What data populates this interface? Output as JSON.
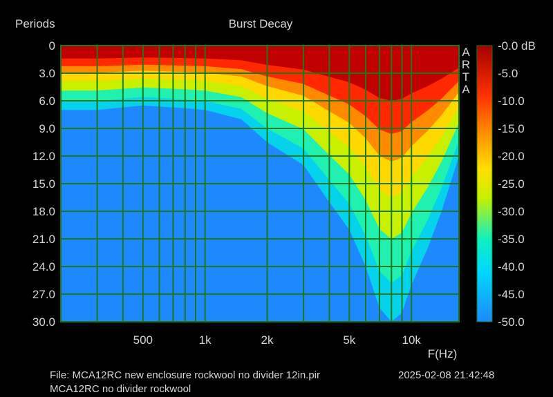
{
  "chart_data": {
    "type": "heatmap",
    "title": "Burst Decay",
    "ylabel": "Periods",
    "xlabel": "F(Hz)",
    "unit_label": "dB",
    "x_scale": "log",
    "xlim": [
      200,
      17000
    ],
    "ylim": [
      0,
      30
    ],
    "x_ticks": [
      {
        "value": 500,
        "label": "500"
      },
      {
        "value": 1000,
        "label": "1k"
      },
      {
        "value": 2000,
        "label": "2k"
      },
      {
        "value": 5000,
        "label": "5k"
      },
      {
        "value": 10000,
        "label": "10k"
      }
    ],
    "y_ticks": [
      "0",
      "3.0",
      "6.0",
      "9.0",
      "12.0",
      "15.0",
      "18.0",
      "21.0",
      "24.0",
      "27.0",
      "30.0"
    ],
    "colorbar": {
      "min": -50,
      "max": 0,
      "labels": [
        "-0.0 dB",
        "-5.0",
        "-10.0",
        "-15.0",
        "-20.0",
        "-25.0",
        "-30.0",
        "-35.0",
        "-40.0",
        "-45.0",
        "-50.0"
      ]
    },
    "vendor_mark": [
      "A",
      "R",
      "T",
      "A"
    ],
    "decay_profile": [
      {
        "freq": 200,
        "periods_to_floor": 7.0
      },
      {
        "freq": 300,
        "periods_to_floor": 7.0
      },
      {
        "freq": 500,
        "periods_to_floor": 6.5
      },
      {
        "freq": 800,
        "periods_to_floor": 6.8
      },
      {
        "freq": 1000,
        "periods_to_floor": 7.0
      },
      {
        "freq": 1500,
        "periods_to_floor": 8.0
      },
      {
        "freq": 2000,
        "periods_to_floor": 10.5
      },
      {
        "freq": 3000,
        "periods_to_floor": 13.0
      },
      {
        "freq": 4000,
        "periods_to_floor": 17.0
      },
      {
        "freq": 5000,
        "periods_to_floor": 20.0
      },
      {
        "freq": 6000,
        "periods_to_floor": 24.0
      },
      {
        "freq": 7000,
        "periods_to_floor": 28.5
      },
      {
        "freq": 8000,
        "periods_to_floor": 30.0
      },
      {
        "freq": 9000,
        "periods_to_floor": 29.0
      },
      {
        "freq": 10000,
        "periods_to_floor": 26.0
      },
      {
        "freq": 12000,
        "periods_to_floor": 22.0
      },
      {
        "freq": 14000,
        "periods_to_floor": 18.0
      },
      {
        "freq": 17000,
        "periods_to_floor": 12.0
      }
    ],
    "color_floor_db": -50
  },
  "footer": {
    "file": "File: MCA12RC new enclosure rockwool no divider 12in.pir",
    "timestamp": "2025-02-08  21:42:48",
    "note": "MCA12RC no divider rockwool"
  }
}
